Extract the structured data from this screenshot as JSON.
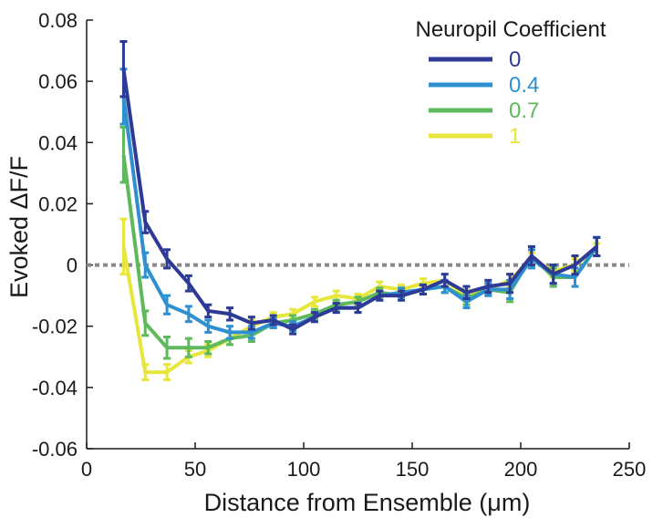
{
  "chart_data": {
    "type": "line",
    "title": "",
    "xlabel": "Distance from Ensemble (μm)",
    "ylabel": "Evoked ΔF/F",
    "xlim": [
      0,
      250
    ],
    "ylim": [
      -0.06,
      0.08
    ],
    "xticks": [
      0,
      50,
      100,
      150,
      200,
      250
    ],
    "xtick_labels": [
      "0",
      "50",
      "100",
      "150",
      "200",
      "250"
    ],
    "yticks": [
      -0.06,
      -0.04,
      -0.02,
      0,
      0.02,
      0.04,
      0.06,
      0.08
    ],
    "ytick_labels": [
      "-0.06",
      "-0.04",
      "-0.02",
      "0",
      "0.02",
      "0.04",
      "0.06",
      "0.08"
    ],
    "grid": false,
    "zero_line": {
      "y": 0,
      "style": "dotted",
      "color": "#888888"
    },
    "legend": {
      "title": "Neuropil Coefficient",
      "placement": "top-right"
    },
    "x": [
      17,
      27,
      37,
      47,
      56,
      66,
      76,
      86,
      95,
      105,
      115,
      125,
      135,
      145,
      155,
      165,
      175,
      185,
      195,
      205,
      215,
      225,
      235
    ],
    "series": [
      {
        "name": "1",
        "color": "#e6e63c",
        "values": [
          0.006,
          -0.035,
          -0.035,
          -0.03,
          -0.028,
          -0.024,
          -0.02,
          -0.017,
          -0.016,
          -0.012,
          -0.01,
          -0.011,
          -0.007,
          -0.008,
          -0.006,
          -0.005,
          -0.01,
          -0.008,
          -0.005,
          0.002,
          -0.002,
          0.0,
          0.005
        ],
        "errors": [
          0.009,
          0.0025,
          0.0025,
          0.002,
          0.002,
          0.002,
          0.002,
          0.0015,
          0.0015,
          0.0015,
          0.0015,
          0.0015,
          0.0015,
          0.0015,
          0.0015,
          0.002,
          0.002,
          0.002,
          0.002,
          0.002,
          0.002,
          0.002,
          0.002
        ]
      },
      {
        "name": "0.7",
        "color": "#5db95b",
        "values": [
          0.036,
          -0.019,
          -0.027,
          -0.027,
          -0.027,
          -0.024,
          -0.023,
          -0.019,
          -0.018,
          -0.016,
          -0.013,
          -0.012,
          -0.009,
          -0.01,
          -0.008,
          -0.007,
          -0.011,
          -0.008,
          -0.009,
          0.003,
          -0.004,
          -0.004,
          0.006
        ],
        "errors": [
          0.009,
          0.004,
          0.0035,
          0.003,
          0.002,
          0.002,
          0.002,
          0.0015,
          0.0015,
          0.0015,
          0.0015,
          0.0015,
          0.0015,
          0.0015,
          0.0015,
          0.002,
          0.002,
          0.002,
          0.003,
          0.003,
          0.003,
          0.003,
          0.003
        ]
      },
      {
        "name": "0.4",
        "color": "#2e90d0",
        "values": [
          0.055,
          0.0,
          -0.013,
          -0.016,
          -0.02,
          -0.022,
          -0.022,
          -0.019,
          -0.02,
          -0.017,
          -0.014,
          -0.014,
          -0.01,
          -0.009,
          -0.008,
          -0.007,
          -0.012,
          -0.008,
          -0.008,
          0.002,
          -0.003,
          -0.004,
          0.006
        ],
        "errors": [
          0.009,
          0.004,
          0.003,
          0.0025,
          0.002,
          0.002,
          0.002,
          0.0015,
          0.0015,
          0.0015,
          0.0015,
          0.0015,
          0.0015,
          0.0015,
          0.0015,
          0.002,
          0.002,
          0.002,
          0.003,
          0.003,
          0.003,
          0.003,
          0.003
        ]
      },
      {
        "name": "0",
        "color": "#2d3a96",
        "values": [
          0.064,
          0.014,
          0.002,
          -0.006,
          -0.015,
          -0.016,
          -0.019,
          -0.018,
          -0.021,
          -0.017,
          -0.014,
          -0.014,
          -0.01,
          -0.01,
          -0.008,
          -0.005,
          -0.009,
          -0.007,
          -0.006,
          0.003,
          -0.003,
          0.0,
          0.006
        ],
        "errors": [
          0.009,
          0.0035,
          0.003,
          0.0025,
          0.002,
          0.002,
          0.002,
          0.0015,
          0.0015,
          0.0015,
          0.0015,
          0.0015,
          0.0015,
          0.0015,
          0.0015,
          0.002,
          0.002,
          0.002,
          0.003,
          0.003,
          0.003,
          0.003,
          0.003
        ]
      }
    ],
    "legend_order": [
      "0",
      "0.4",
      "0.7",
      "1"
    ]
  }
}
